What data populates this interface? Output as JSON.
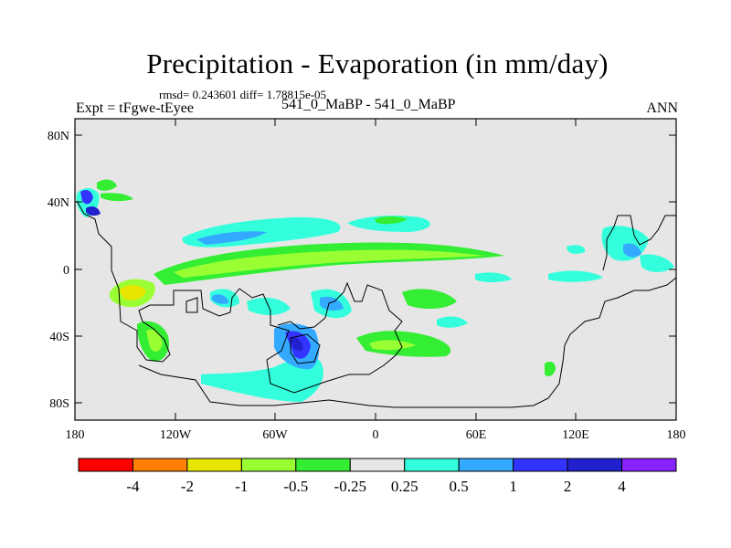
{
  "header": {
    "title": "Precipitation - Evaporation (in mm/day)",
    "stats": "rmsd= 0.243601 diff= 1.78815e-05",
    "experiment": "Expt = tFgwe-tEyee",
    "comparison": "541_0_MaBP - 541_0_MaBP",
    "season": "ANN"
  },
  "axes": {
    "x_ticks": [
      "180",
      "120W",
      "60W",
      "0",
      "60E",
      "120E",
      "180"
    ],
    "y_ticks": [
      "80N",
      "40N",
      "0",
      "40S",
      "80S"
    ]
  },
  "colorbar": {
    "labels": [
      "-4",
      "-2",
      "-1",
      "-0.5",
      "-0.25",
      "0.25",
      "0.5",
      "1",
      "2",
      "4"
    ],
    "colors": [
      "#ff0000",
      "#ff8000",
      "#e6e600",
      "#99ff33",
      "#33ee33",
      "#e6e6e6",
      "#33ffdd",
      "#33aaff",
      "#3333ff",
      "#2020cc",
      "#8822ff"
    ]
  },
  "map": {
    "background_color": "#e6e6e6",
    "coastline_color": "#000000"
  }
}
